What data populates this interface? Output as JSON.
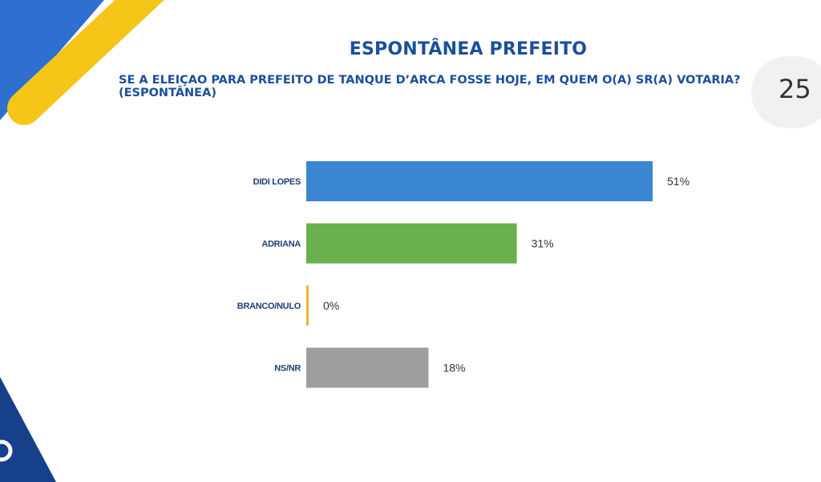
{
  "header": {
    "title": "ESPONTÂNEA PREFEITO",
    "subtitle_line1": "SE A ELEIÇÃO PARA PREFEITO DE TANQUE D’ARCA FOSSE HOJE, EM QUEM O(A) SR(A) VOTARIA?",
    "subtitle_line2": "(ESPONTÂNEA)"
  },
  "page": {
    "number": "25"
  },
  "colors": {
    "brand_blue": "#1a4f9c",
    "accent_yellow": "#f5c518"
  },
  "chart_data": {
    "type": "bar",
    "orientation": "horizontal",
    "title": "ESPONTÂNEA PREFEITO",
    "categories": [
      "DIDI LOPES",
      "ADRIANA",
      "BRANCO/NULO",
      "NS/NR"
    ],
    "values": [
      51,
      31,
      0,
      18
    ],
    "value_labels": [
      "51%",
      "31%",
      "0%",
      "18%"
    ],
    "colors": [
      "#3a86d0",
      "#6ab04c",
      "#f0b429",
      "#9e9e9e"
    ],
    "xlim": [
      0,
      51
    ],
    "unit": "%",
    "grid": false,
    "legend": "none"
  }
}
